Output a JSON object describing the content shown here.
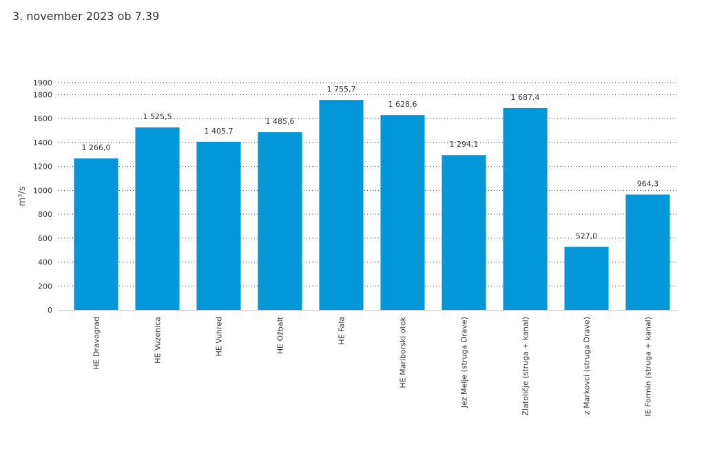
{
  "header": {
    "timestamp": "3. november 2023 ob 7.39"
  },
  "colors": {
    "bar": "#0396d8",
    "grid": "#333333",
    "axis": "#cccccc"
  },
  "chart_data": {
    "type": "bar",
    "title": "",
    "xlabel": "",
    "ylabel": "m³/s",
    "ylim": [
      0,
      1900
    ],
    "yticks": [
      0,
      200,
      400,
      600,
      800,
      1000,
      1200,
      1400,
      1600,
      1800,
      1900
    ],
    "ytick_labels": [
      "0",
      "200",
      "400",
      "600",
      "800",
      "1000",
      "1200",
      "1400",
      "1600",
      "1800",
      "1900"
    ],
    "grid": true,
    "categories": [
      "HE Dravograd",
      "HE Vuzenica",
      "HE Vuhred",
      "HE Ožbalt",
      "HE Fala",
      "HE Mariborski otok",
      "Jez Melje (struga Drave)",
      "Zlatoličje (struga + kanal)",
      "z Markovci (struga Drave)",
      "IE Formin (struga + kanal)"
    ],
    "values": [
      1266.0,
      1525.5,
      1405.7,
      1485.6,
      1755.7,
      1628.6,
      1294.1,
      1687.4,
      527.0,
      964.3
    ],
    "value_labels": [
      "1 266,0",
      "1 525,5",
      "1 405,7",
      "1 485,6",
      "1 755,7",
      "1 628,6",
      "1 294,1",
      "1 687,4",
      "527,0",
      "964,3"
    ]
  }
}
